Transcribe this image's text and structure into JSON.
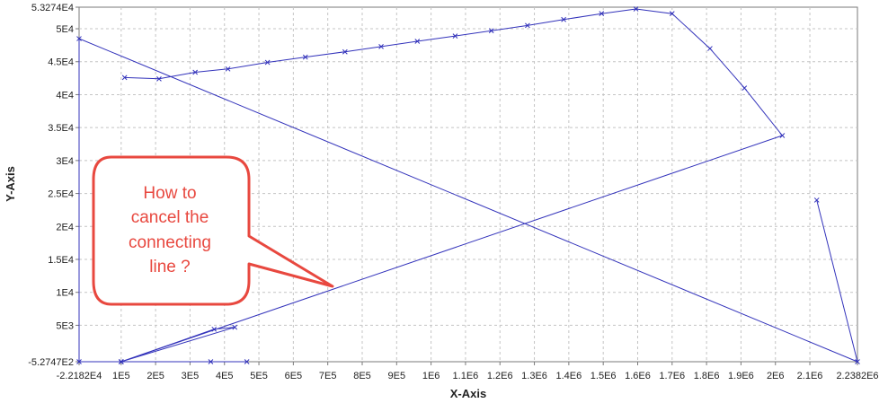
{
  "chart_data": {
    "type": "line",
    "title": "",
    "xlabel": "X-Axis",
    "ylabel": "Y-Axis",
    "xlim": [
      -22182,
      2238200
    ],
    "ylim": [
      -527.47,
      53274
    ],
    "grid": true,
    "series_color": "#3333bb",
    "xticks": [
      {
        "value": -22182,
        "label": "-2.2182E4"
      },
      {
        "value": 100000,
        "label": "1E5"
      },
      {
        "value": 200000,
        "label": "2E5"
      },
      {
        "value": 300000,
        "label": "3E5"
      },
      {
        "value": 400000,
        "label": "4E5"
      },
      {
        "value": 500000,
        "label": "5E5"
      },
      {
        "value": 600000,
        "label": "6E5"
      },
      {
        "value": 700000,
        "label": "7E5"
      },
      {
        "value": 800000,
        "label": "8E5"
      },
      {
        "value": 900000,
        "label": "9E5"
      },
      {
        "value": 1000000,
        "label": "1E6"
      },
      {
        "value": 1100000,
        "label": "1.1E6"
      },
      {
        "value": 1200000,
        "label": "1.2E6"
      },
      {
        "value": 1300000,
        "label": "1.3E6"
      },
      {
        "value": 1400000,
        "label": "1.4E6"
      },
      {
        "value": 1500000,
        "label": "1.5E6"
      },
      {
        "value": 1600000,
        "label": "1.6E6"
      },
      {
        "value": 1700000,
        "label": "1.7E6"
      },
      {
        "value": 1800000,
        "label": "1.8E6"
      },
      {
        "value": 1900000,
        "label": "1.9E6"
      },
      {
        "value": 2000000,
        "label": "2E6"
      },
      {
        "value": 2100000,
        "label": "2.1E6"
      },
      {
        "value": 2238200,
        "label": "2.2382E6"
      }
    ],
    "yticks": [
      {
        "value": -527.47,
        "label": "-5.2747E2"
      },
      {
        "value": 5000,
        "label": "5E3"
      },
      {
        "value": 10000,
        "label": "1E4"
      },
      {
        "value": 15000,
        "label": "1.5E4"
      },
      {
        "value": 20000,
        "label": "2E4"
      },
      {
        "value": 25000,
        "label": "2.5E4"
      },
      {
        "value": 30000,
        "label": "3E4"
      },
      {
        "value": 35000,
        "label": "3.5E4"
      },
      {
        "value": 40000,
        "label": "4E4"
      },
      {
        "value": 45000,
        "label": "4.5E4"
      },
      {
        "value": 50000,
        "label": "5E4"
      },
      {
        "value": 53274,
        "label": "5.3274E4"
      }
    ],
    "series": [
      {
        "points": [
          [
            2120000,
            24000
          ],
          [
            2238200,
            -527.47
          ],
          [
            -22182,
            48500
          ],
          [
            -22182,
            -527.47
          ],
          [
            100000,
            -527.47
          ],
          [
            430000,
            4700
          ],
          [
            370000,
            4400
          ],
          [
            100000,
            -527.47
          ],
          [
            360000,
            -527.47
          ],
          [
            465000,
            -527.47
          ],
          [
            100000,
            -527.47
          ],
          [
            2020000,
            33800
          ],
          [
            1910000,
            41000
          ],
          [
            1810000,
            47000
          ],
          [
            1700000,
            52300
          ],
          [
            1595000,
            53000
          ],
          [
            1495000,
            52300
          ],
          [
            1385000,
            51400
          ],
          [
            1280000,
            50500
          ],
          [
            1175000,
            49700
          ],
          [
            1070000,
            48900
          ],
          [
            960000,
            48100
          ],
          [
            855000,
            47300
          ],
          [
            750000,
            46500
          ],
          [
            635000,
            45700
          ],
          [
            525000,
            44900
          ],
          [
            410000,
            43900
          ],
          [
            315000,
            43400
          ],
          [
            210000,
            42400
          ],
          [
            110000,
            42600
          ]
        ]
      }
    ],
    "annotations": [
      {
        "lines": [
          "How to",
          "cancel the",
          "connecting",
          "line ?"
        ],
        "color": "#e8483f",
        "fill": "#ffffff"
      }
    ]
  }
}
